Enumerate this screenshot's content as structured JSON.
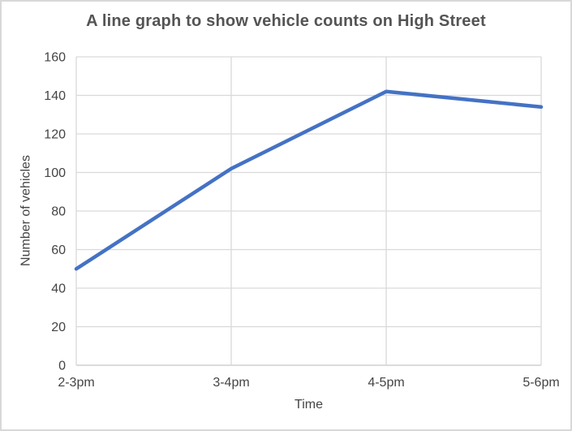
{
  "window": {
    "background": "#ffffff",
    "frame_border_color": "#d8d8d8"
  },
  "chart_data": {
    "type": "line",
    "title": "A line graph to show vehicle counts on High Street",
    "xlabel": "Time",
    "ylabel": "Number of vehicles",
    "categories": [
      "2-3pm",
      "3-4pm",
      "4-5pm",
      "5-6pm"
    ],
    "values": [
      50,
      102,
      142,
      134
    ],
    "ylim": [
      0,
      160
    ],
    "yticks": [
      0,
      20,
      40,
      60,
      80,
      100,
      120,
      140,
      160
    ],
    "grid": true,
    "legend": false,
    "markers": false,
    "line_color": "#4472C4",
    "gridline_color": "#d9d9d9",
    "axis_line_color": "#c6c6c6",
    "label_color": "#444444",
    "title_color": "#545454"
  }
}
